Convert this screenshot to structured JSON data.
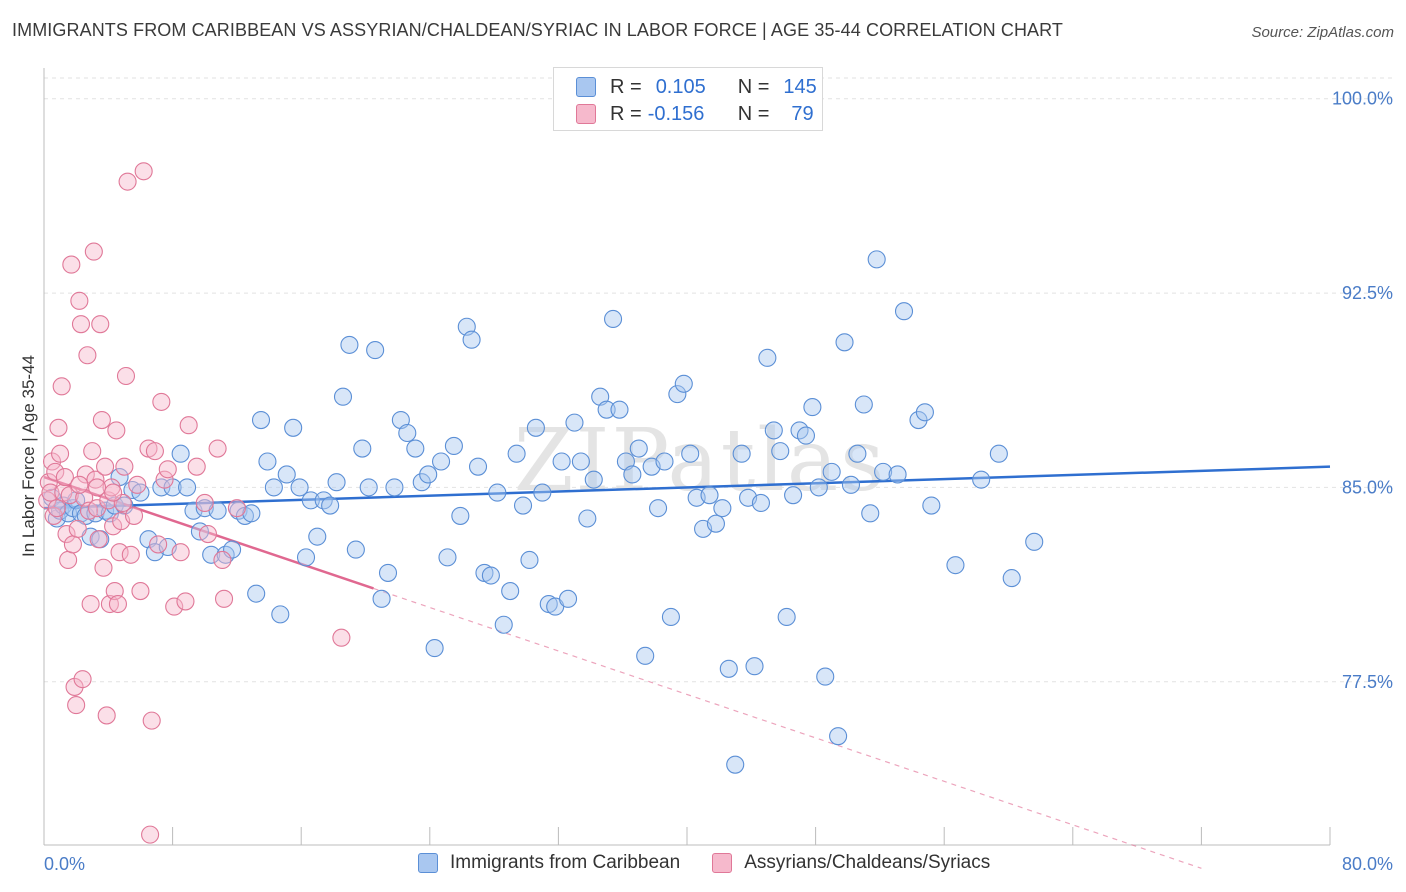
{
  "title": "IMMIGRANTS FROM CARIBBEAN VS ASSYRIAN/CHALDEAN/SYRIAC IN LABOR FORCE | AGE 35-44 CORRELATION CHART",
  "source": "Source: ZipAtlas.com",
  "watermark": "ZIPatlas",
  "legend": {
    "rows": [
      {
        "r_label": "R =",
        "r_value": "0.105",
        "n_label": "N =",
        "n_value": "145",
        "color": "#a9c7f0",
        "border": "#5b8fd6"
      },
      {
        "r_label": "R =",
        "r_value": "-0.156",
        "n_label": "N =",
        "n_value": "79",
        "color": "#f6b9cc",
        "border": "#e07898"
      }
    ]
  },
  "chart_data": {
    "type": "scatter",
    "ylabel": "In Labor Force | Age 35-44",
    "xlim": [
      0,
      80
    ],
    "ylim": [
      71.2,
      100.8
    ],
    "x_tick_labels": [
      {
        "value": 0,
        "label": "0.0%"
      },
      {
        "value": 80,
        "label": "80.0%"
      }
    ],
    "y_ticks": [
      {
        "value": 100,
        "label": "100.0%"
      },
      {
        "value": 92.5,
        "label": "92.5%"
      },
      {
        "value": 85,
        "label": "85.0%"
      },
      {
        "value": 77.5,
        "label": "77.5%"
      }
    ],
    "grid": "horizontal dashed",
    "series": [
      {
        "name": "Immigrants from Caribbean",
        "color": "#a9c7f0",
        "stroke": "#5b8fd6",
        "trend": {
          "x0": 0,
          "y0": 84.2,
          "x1": 80,
          "y1": 85.8,
          "color": "#2f6fd0"
        },
        "points": [
          [
            0.5,
            84.6
          ],
          [
            0.8,
            83.8
          ],
          [
            1,
            84.1
          ],
          [
            1.2,
            84.3
          ],
          [
            1.5,
            84
          ],
          [
            1.8,
            84.2
          ],
          [
            2,
            84.5
          ],
          [
            2.3,
            84
          ],
          [
            2.6,
            83.9
          ],
          [
            2.9,
            83.1
          ],
          [
            3.2,
            84
          ],
          [
            3.5,
            83
          ],
          [
            3.8,
            84.1
          ],
          [
            4.1,
            84
          ],
          [
            4.4,
            84.3
          ],
          [
            4.7,
            85.4
          ],
          [
            5,
            84.3
          ],
          [
            5.5,
            84.9
          ],
          [
            6,
            84.8
          ],
          [
            6.5,
            83
          ],
          [
            6.9,
            82.5
          ],
          [
            7.3,
            85
          ],
          [
            7.7,
            82.7
          ],
          [
            8,
            85
          ],
          [
            8.5,
            86.3
          ],
          [
            8.9,
            85
          ],
          [
            9.3,
            84.1
          ],
          [
            9.7,
            83.3
          ],
          [
            10,
            84.2
          ],
          [
            10.4,
            82.4
          ],
          [
            10.8,
            84.1
          ],
          [
            11.3,
            82.4
          ],
          [
            11.7,
            82.6
          ],
          [
            12.1,
            84.1
          ],
          [
            12.5,
            83.9
          ],
          [
            12.9,
            84
          ],
          [
            13.2,
            80.9
          ],
          [
            13.5,
            87.6
          ],
          [
            13.9,
            86
          ],
          [
            14.3,
            85
          ],
          [
            14.7,
            80.1
          ],
          [
            15.1,
            85.5
          ],
          [
            15.5,
            87.3
          ],
          [
            15.9,
            85
          ],
          [
            16.3,
            82.3
          ],
          [
            16.6,
            84.5
          ],
          [
            17,
            83.1
          ],
          [
            17.4,
            84.5
          ],
          [
            17.8,
            84.3
          ],
          [
            18.2,
            85.2
          ],
          [
            18.6,
            88.5
          ],
          [
            19,
            90.5
          ],
          [
            19.4,
            82.6
          ],
          [
            19.8,
            86.5
          ],
          [
            20.2,
            85
          ],
          [
            20.6,
            90.3
          ],
          [
            21,
            80.7
          ],
          [
            21.4,
            81.7
          ],
          [
            21.8,
            85
          ],
          [
            22.2,
            87.6
          ],
          [
            22.6,
            87.1
          ],
          [
            23.1,
            86.5
          ],
          [
            23.5,
            85.2
          ],
          [
            23.9,
            85.5
          ],
          [
            24.3,
            78.8
          ],
          [
            24.7,
            86
          ],
          [
            25.1,
            82.3
          ],
          [
            25.5,
            86.6
          ],
          [
            25.9,
            83.9
          ],
          [
            26.3,
            91.2
          ],
          [
            26.6,
            90.7
          ],
          [
            27,
            85.8
          ],
          [
            27.4,
            81.7
          ],
          [
            27.8,
            81.6
          ],
          [
            28.2,
            84.8
          ],
          [
            28.6,
            79.7
          ],
          [
            29,
            81
          ],
          [
            29.4,
            86.3
          ],
          [
            29.8,
            84.3
          ],
          [
            30.2,
            82.2
          ],
          [
            30.6,
            87.3
          ],
          [
            31,
            84.8
          ],
          [
            31.4,
            80.5
          ],
          [
            31.8,
            80.4
          ],
          [
            32.2,
            86
          ],
          [
            32.6,
            80.7
          ],
          [
            33,
            87.5
          ],
          [
            33.4,
            86
          ],
          [
            33.8,
            83.8
          ],
          [
            34.2,
            85.3
          ],
          [
            34.6,
            88.5
          ],
          [
            35,
            88
          ],
          [
            35.4,
            91.5
          ],
          [
            35.8,
            88
          ],
          [
            36.2,
            86
          ],
          [
            36.6,
            85.5
          ],
          [
            37,
            86.5
          ],
          [
            37.4,
            78.5
          ],
          [
            37.8,
            85.8
          ],
          [
            38.2,
            84.2
          ],
          [
            38.6,
            86
          ],
          [
            39,
            80
          ],
          [
            39.4,
            88.6
          ],
          [
            39.8,
            89
          ],
          [
            40.2,
            86.3
          ],
          [
            40.6,
            84.6
          ],
          [
            41,
            83.4
          ],
          [
            41.4,
            84.7
          ],
          [
            41.8,
            83.6
          ],
          [
            42.2,
            84.2
          ],
          [
            42.6,
            78
          ],
          [
            43,
            74.3
          ],
          [
            43.4,
            86.3
          ],
          [
            43.8,
            84.6
          ],
          [
            44.2,
            78.1
          ],
          [
            44.6,
            84.4
          ],
          [
            45,
            90
          ],
          [
            45.4,
            87.2
          ],
          [
            45.8,
            86.4
          ],
          [
            46.2,
            80
          ],
          [
            46.6,
            84.7
          ],
          [
            47,
            87.2
          ],
          [
            47.4,
            87
          ],
          [
            47.8,
            88.1
          ],
          [
            48.2,
            85
          ],
          [
            48.6,
            77.7
          ],
          [
            49,
            85.6
          ],
          [
            49.4,
            75.4
          ],
          [
            49.8,
            90.6
          ],
          [
            50.2,
            85.1
          ],
          [
            50.6,
            86.3
          ],
          [
            51,
            88.2
          ],
          [
            51.4,
            84
          ],
          [
            51.8,
            93.8
          ],
          [
            52.2,
            85.6
          ],
          [
            53.1,
            85.5
          ],
          [
            53.5,
            91.8
          ],
          [
            54.4,
            87.6
          ],
          [
            54.8,
            87.9
          ],
          [
            55.2,
            84.3
          ],
          [
            56.7,
            82
          ],
          [
            58.3,
            85.3
          ],
          [
            59.4,
            86.3
          ],
          [
            60.2,
            81.5
          ],
          [
            61.6,
            82.9
          ]
        ]
      },
      {
        "name": "Assyrians/Chaldeans/Syriacs",
        "color": "#f6b9cc",
        "stroke": "#e07898",
        "trend": {
          "x0": 0,
          "y0": 85.4,
          "x1": 20.5,
          "y1": 81.1,
          "x_dash_end": 72,
          "y_dash_end": 70.3,
          "color": "#e06890"
        },
        "points": [
          [
            0.2,
            84.5
          ],
          [
            0.3,
            85.2
          ],
          [
            0.4,
            84.8
          ],
          [
            0.5,
            86
          ],
          [
            0.6,
            83.9
          ],
          [
            0.7,
            85.6
          ],
          [
            0.8,
            84.2
          ],
          [
            0.9,
            87.3
          ],
          [
            1,
            86.3
          ],
          [
            1.1,
            88.9
          ],
          [
            1.2,
            84.8
          ],
          [
            1.3,
            85.4
          ],
          [
            1.4,
            83.2
          ],
          [
            1.5,
            82.2
          ],
          [
            1.6,
            84.7
          ],
          [
            1.7,
            93.6
          ],
          [
            1.8,
            82.8
          ],
          [
            1.9,
            77.3
          ],
          [
            2,
            76.6
          ],
          [
            2.1,
            83.4
          ],
          [
            2.2,
            92.2
          ],
          [
            2.3,
            91.3
          ],
          [
            2.4,
            77.6
          ],
          [
            2.5,
            84.6
          ],
          [
            2.6,
            85.5
          ],
          [
            2.7,
            90.1
          ],
          [
            2.8,
            84.1
          ],
          [
            2.9,
            80.5
          ],
          [
            3,
            86.4
          ],
          [
            3.1,
            94.1
          ],
          [
            3.2,
            85.3
          ],
          [
            3.3,
            84.2
          ],
          [
            3.4,
            83
          ],
          [
            3.5,
            91.3
          ],
          [
            3.6,
            87.6
          ],
          [
            3.7,
            81.9
          ],
          [
            3.8,
            85.8
          ],
          [
            3.9,
            76.2
          ],
          [
            4,
            84.5
          ],
          [
            4.1,
            80.5
          ],
          [
            4.2,
            85
          ],
          [
            4.3,
            83.5
          ],
          [
            4.4,
            81
          ],
          [
            4.5,
            87.2
          ],
          [
            4.6,
            80.5
          ],
          [
            4.7,
            82.5
          ],
          [
            4.8,
            83.7
          ],
          [
            4.9,
            84.4
          ],
          [
            5,
            85.8
          ],
          [
            5.1,
            89.3
          ],
          [
            5.2,
            96.8
          ],
          [
            5.4,
            82.4
          ],
          [
            5.6,
            83.9
          ],
          [
            5.8,
            85.1
          ],
          [
            6,
            81
          ],
          [
            6.2,
            97.2
          ],
          [
            6.5,
            86.5
          ],
          [
            6.7,
            76
          ],
          [
            6.9,
            86.4
          ],
          [
            7.1,
            82.8
          ],
          [
            7.3,
            88.3
          ],
          [
            7.5,
            85.3
          ],
          [
            7.7,
            85.7
          ],
          [
            8.1,
            80.4
          ],
          [
            8.5,
            82.5
          ],
          [
            8.8,
            80.6
          ],
          [
            9,
            87.4
          ],
          [
            9.5,
            85.8
          ],
          [
            10,
            84.4
          ],
          [
            10.2,
            83.2
          ],
          [
            10.8,
            86.5
          ],
          [
            11.1,
            82.2
          ],
          [
            11.2,
            80.7
          ],
          [
            12,
            84.2
          ],
          [
            6.6,
            71.6
          ],
          [
            18.5,
            79.2
          ],
          [
            2.2,
            85.1
          ],
          [
            3.3,
            85
          ],
          [
            4.3,
            84.8
          ]
        ]
      }
    ]
  }
}
